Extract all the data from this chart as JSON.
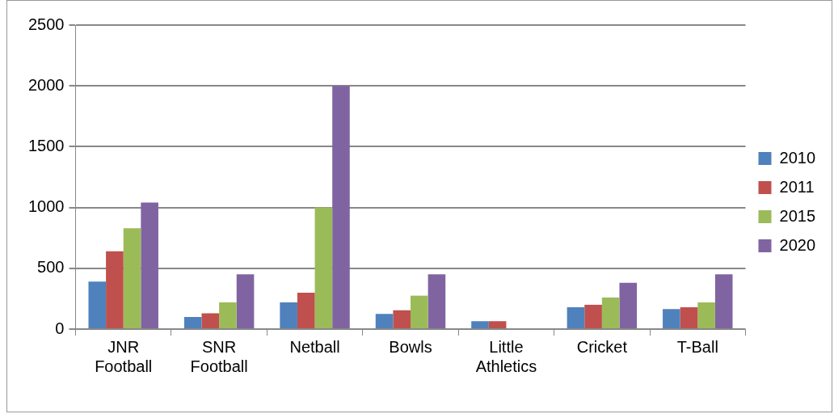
{
  "chart_data": {
    "type": "bar",
    "categories": [
      [
        "JNR",
        "Football"
      ],
      [
        "SNR",
        "Football"
      ],
      "Netball",
      "Bowls",
      [
        "Little",
        "Athletics"
      ],
      "Cricket",
      "T-Ball"
    ],
    "series": [
      {
        "name": "2010",
        "color": "#4f81bd",
        "values": [
          390,
          100,
          220,
          125,
          65,
          180,
          165
        ]
      },
      {
        "name": "2011",
        "color": "#c0504d",
        "values": [
          640,
          130,
          300,
          155,
          65,
          200,
          180
        ]
      },
      {
        "name": "2015",
        "color": "#9bbb59",
        "values": [
          830,
          220,
          1000,
          275,
          0,
          260,
          220
        ]
      },
      {
        "name": "2020",
        "color": "#8064a2",
        "values": [
          1040,
          450,
          2000,
          450,
          0,
          380,
          450
        ]
      }
    ],
    "ylim": [
      0,
      2500
    ],
    "yticks": [
      0,
      500,
      1000,
      1500,
      2000,
      2500
    ],
    "grid": "y",
    "legend": "right"
  }
}
